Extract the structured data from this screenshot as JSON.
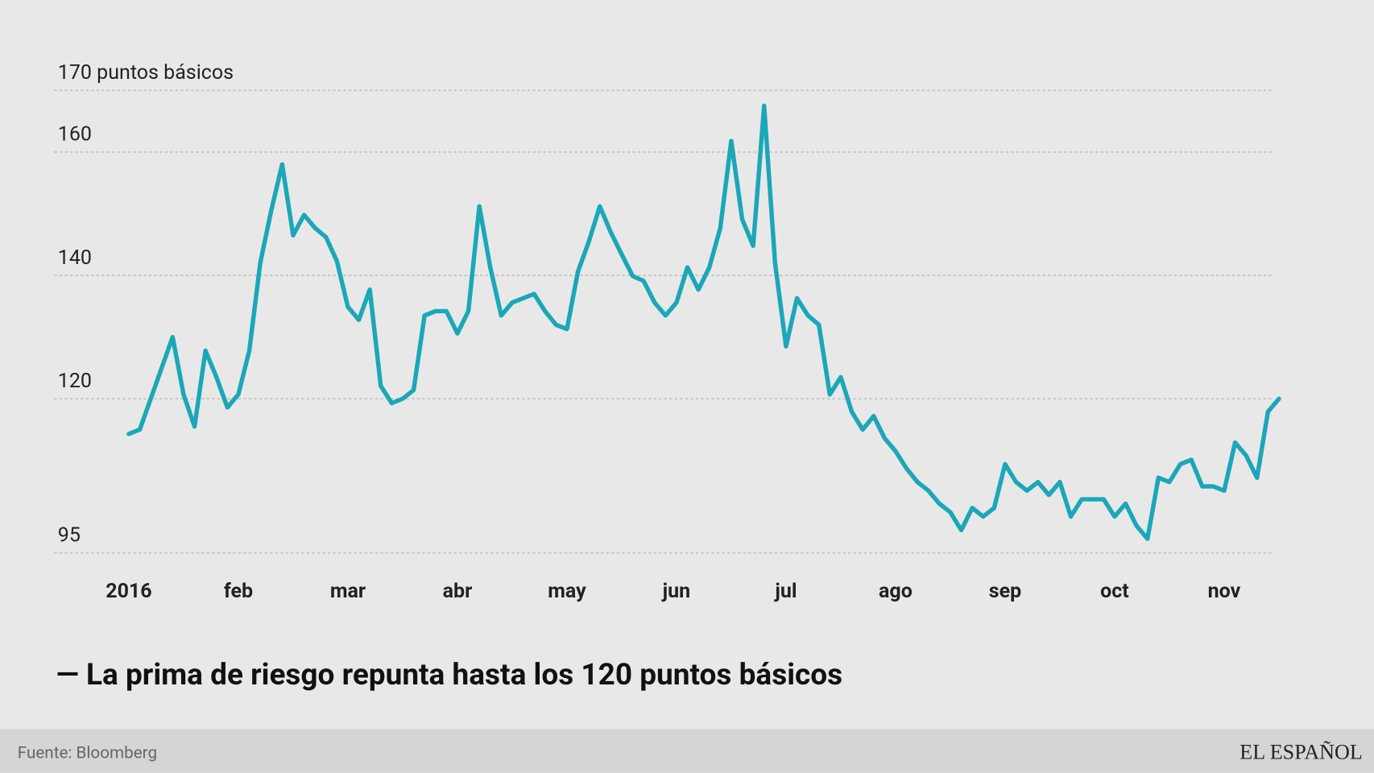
{
  "chart_data": {
    "type": "line",
    "title": "— La prima de riesgo repunta hasta los 120 puntos básicos",
    "categories": [
      "2016",
      null,
      null,
      null,
      null,
      null,
      null,
      null,
      null,
      null,
      "feb",
      null,
      null,
      null,
      null,
      null,
      null,
      null,
      null,
      null,
      "mar",
      null,
      null,
      null,
      null,
      null,
      null,
      null,
      null,
      null,
      "abr",
      null,
      null,
      null,
      null,
      null,
      null,
      null,
      null,
      null,
      "may",
      null,
      null,
      null,
      null,
      null,
      null,
      null,
      null,
      null,
      "jun",
      null,
      null,
      null,
      null,
      null,
      null,
      null,
      null,
      null,
      "jul",
      null,
      null,
      null,
      null,
      null,
      null,
      null,
      null,
      null,
      "ago",
      null,
      null,
      null,
      null,
      null,
      null,
      null,
      null,
      null,
      "sep",
      null,
      null,
      null,
      null,
      null,
      null,
      null,
      null,
      null,
      "oct",
      null,
      null,
      null,
      null,
      null,
      null,
      null,
      null,
      null,
      "nov",
      null,
      null,
      null,
      null,
      null
    ],
    "series": [
      {
        "color": "#1ba7b8",
        "values": [
          114.3,
          115,
          120,
          125,
          130,
          120.7,
          115.5,
          127.8,
          123.5,
          118.6,
          120.7,
          127.8,
          142,
          150.5,
          158,
          146.5,
          149.8,
          147.7,
          146.2,
          142.3,
          134.9,
          132.8,
          137.7,
          122.1,
          119.3,
          120,
          121.4,
          133.5,
          134.2,
          134.2,
          130.6,
          134.2,
          151.2,
          141.3,
          133.5,
          135.6,
          136.3,
          137,
          134.2,
          132,
          131.3,
          140.6,
          145.5,
          151.2,
          147,
          143.4,
          139.9,
          139.1,
          135.6,
          133.5,
          135.6,
          141.3,
          137.7,
          141.3,
          147.7,
          161.8,
          149.1,
          144.8,
          167.5,
          142,
          128.5,
          136.3,
          133.5,
          132,
          120.7,
          123.5,
          117.9,
          115,
          117.2,
          113.6,
          111.5,
          108.7,
          106.5,
          105.1,
          103,
          101.6,
          98.7,
          102.3,
          100.9,
          102.3,
          109.4,
          106.5,
          105.1,
          106.5,
          104.4,
          106.5,
          100.9,
          103.7,
          103.7,
          103.7,
          100.9,
          103,
          99.4,
          97.3,
          107.2,
          106.5,
          109.4,
          110.1,
          105.8,
          105.8,
          105.1,
          112.9,
          110.8,
          107.2,
          117.9,
          120
        ]
      }
    ],
    "ylim": [
      95,
      170
    ],
    "yticks": [
      95,
      120,
      140,
      160,
      {
        "value": 170,
        "label": "170 puntos básicos"
      }
    ],
    "grid": true
  },
  "footer": {
    "source": "Fuente: Bloomberg",
    "brand": "EL ESPAÑOL"
  }
}
